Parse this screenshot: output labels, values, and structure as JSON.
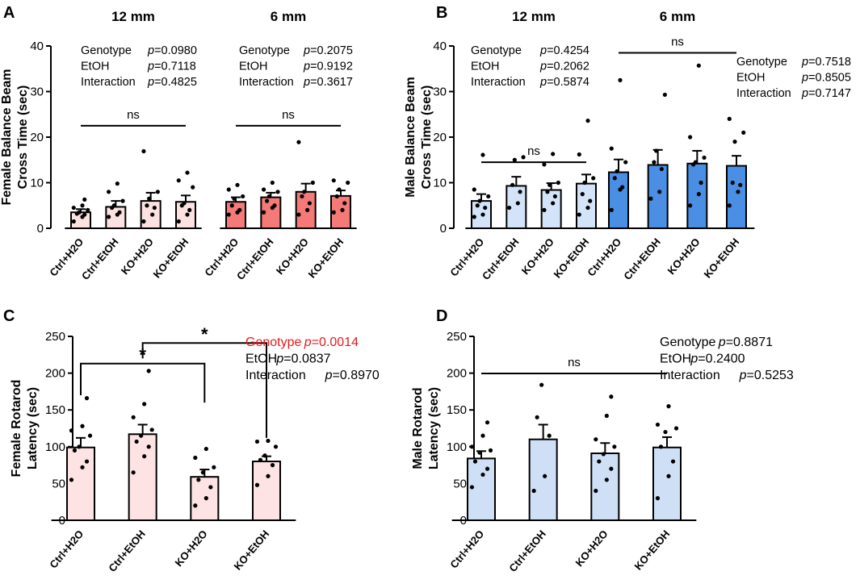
{
  "colors": {
    "female_12": "#fbe1e0",
    "female_6": "#f47a78",
    "male_12": "#d3e4f8",
    "male_6": "#4a8fe4",
    "rotarod_female": "#fde3e3",
    "rotarod_male": "#cfe0f6",
    "highlight": "#e8191a"
  },
  "chart_data": [
    {
      "id": "A",
      "type": "bar",
      "title": "",
      "ylabel": "Female Balance Beam Cross Time (sec)",
      "ylabel_lines": [
        "Female Balance Beam",
        "Cross Time (sec)"
      ],
      "ylim": [
        0,
        40
      ],
      "yticks": [
        "0",
        "10",
        "20",
        "30",
        "40"
      ],
      "groups": [
        {
          "title": "12 mm",
          "color_key": "female_12",
          "categories": [
            "Ctrl+H2O",
            "Ctrl+EtOH",
            "KO+H2O",
            "KO+EtOH"
          ],
          "values": [
            3.5,
            4.7,
            6.0,
            5.8
          ],
          "errors": [
            0.7,
            1.3,
            1.8,
            1.4
          ],
          "points": [
            [
              1.5,
              2.5,
              3.0,
              3.2,
              3.5,
              4.0,
              4.5,
              5.0,
              6.3
            ],
            [
              2.5,
              3.0,
              3.5,
              4.5,
              5.0,
              6.0,
              8.0,
              9.8
            ],
            [
              1.5,
              3.0,
              4.5,
              5.0,
              6.5,
              8.0,
              16.9
            ],
            [
              1.5,
              3.0,
              4.0,
              5.0,
              5.5,
              9.0,
              10.5,
              12.2
            ]
          ],
          "sig": "ns",
          "stats": [
            {
              "label": "Genotype",
              "p": "p",
              "value": "=0.0980"
            },
            {
              "label": "EtOH",
              "p": "p",
              "value": "=0.7118"
            },
            {
              "label": "Interaction",
              "p": "p",
              "value": "=0.4825"
            }
          ]
        },
        {
          "title": "6 mm",
          "color_key": "female_6",
          "categories": [
            "Ctrl+H2O",
            "Ctrl+EtOH",
            "KO+H2O",
            "KO+EtOH"
          ],
          "values": [
            5.8,
            6.8,
            8.0,
            7.1
          ],
          "errors": [
            1.0,
            1.0,
            1.8,
            1.2
          ],
          "points": [
            [
              3.0,
              3.5,
              4.0,
              5.0,
              6.5,
              7.0,
              8.5,
              9.5
            ],
            [
              3.5,
              4.5,
              5.0,
              6.0,
              7.0,
              8.0,
              8.5,
              10.0
            ],
            [
              3.0,
              4.0,
              5.5,
              7.0,
              8.0,
              10.0,
              18.9
            ],
            [
              3.5,
              4.0,
              5.5,
              7.0,
              8.5,
              10.0,
              10.5
            ]
          ],
          "sig": "ns",
          "stats": [
            {
              "label": "Genotype",
              "p": "p",
              "value": "=0.2075"
            },
            {
              "label": "EtOH",
              "p": "p",
              "value": "=0.9192"
            },
            {
              "label": "Interaction",
              "p": "p",
              "value": "=0.3617"
            }
          ]
        }
      ]
    },
    {
      "id": "B",
      "type": "bar",
      "title": "",
      "ylabel": "Male Balance Beam Cross Time (sec)",
      "ylabel_lines": [
        "Male Balance Beam",
        "Cross Time (sec)"
      ],
      "ylim": [
        0,
        40
      ],
      "yticks": [
        "0",
        "10",
        "20",
        "30",
        "40"
      ],
      "groups": [
        {
          "title": "12 mm",
          "color_key": "male_12",
          "categories": [
            "Ctrl+H2O",
            "Ctrl+EtOH",
            "KO+H2O",
            "KO+EtOH"
          ],
          "values": [
            6.0,
            9.3,
            8.4,
            9.8
          ],
          "errors": [
            1.5,
            2.0,
            1.5,
            2.0
          ],
          "points": [
            [
              2.5,
              3.0,
              4.5,
              5.0,
              6.0,
              7.0,
              8.5,
              16.1
            ],
            [
              4.5,
              5.5,
              8.0,
              9.5,
              15.0,
              15.6
            ],
            [
              4.0,
              5.5,
              7.0,
              8.0,
              9.5,
              10.0,
              14.0,
              16.3
            ],
            [
              3.0,
              4.5,
              6.0,
              7.5,
              10.0,
              11.0,
              16.2,
              23.6
            ]
          ],
          "sig": "ns",
          "stats": [
            {
              "label": "Genotype",
              "p": "p",
              "value": "=0.4254"
            },
            {
              "label": "EtOH",
              "p": "p",
              "value": "=0.2062"
            },
            {
              "label": "Interaction",
              "p": "p",
              "value": "=0.5874"
            }
          ]
        },
        {
          "title": "6 mm",
          "color_key": "male_6",
          "categories": [
            "Ctrl+H2O",
            "Ctrl+EtOH",
            "KO+H2O",
            "KO+EtOH"
          ],
          "values": [
            12.3,
            13.9,
            14.2,
            13.7
          ],
          "errors": [
            2.8,
            3.3,
            2.8,
            2.2
          ],
          "points": [
            [
              4.0,
              8.5,
              9.0,
              11.0,
              12.5,
              14.5,
              17.5,
              32.5
            ],
            [
              6.5,
              8.0,
              13.0,
              14.5,
              17.0,
              29.3
            ],
            [
              5.0,
              7.5,
              10.0,
              14.0,
              14.5,
              15.5,
              20.0,
              35.7
            ],
            [
              5.0,
              8.0,
              9.5,
              10.0,
              19.0,
              21.0,
              24.0
            ]
          ],
          "sig": "ns",
          "stats": [
            {
              "label": "Genotype",
              "p": "p",
              "value": "=0.7518"
            },
            {
              "label": "EtOH",
              "p": "p",
              "value": "=0.8505"
            },
            {
              "label": "Interaction",
              "p": "p",
              "value": "=0.7147"
            }
          ]
        }
      ]
    },
    {
      "id": "C",
      "type": "bar",
      "title": "",
      "ylabel": "Female Rotarod Latency (sec)",
      "ylabel_lines": [
        "Female Rotarod",
        "Latency (sec)"
      ],
      "ylim": [
        0,
        250
      ],
      "yticks": [
        "0",
        "50",
        "100",
        "150",
        "200",
        "250"
      ],
      "groups": [
        {
          "title": "",
          "color_key": "rotarod_female",
          "categories": [
            "Ctrl+H2O",
            "Ctrl+EtOH",
            "KO+H2O",
            "KO+EtOH"
          ],
          "values": [
            99,
            117,
            59,
            80
          ],
          "errors": [
            13,
            13,
            10,
            7
          ],
          "points": [
            [
              55,
              72,
              80,
              95,
              100,
              115,
              122,
              128,
              166
            ],
            [
              65,
              87,
              100,
              107,
              115,
              123,
              140,
              158,
              203
            ],
            [
              20,
              30,
              45,
              55,
              65,
              72,
              85,
              97
            ],
            [
              48,
              60,
              75,
              82,
              88,
              100,
              107,
              108
            ]
          ],
          "brackets": [
            {
              "from": 0,
              "to": 2,
              "level": 213,
              "label": "*"
            },
            {
              "from": 1,
              "to": 3,
              "level": 241,
              "label": "*"
            }
          ],
          "stats": [
            {
              "label": "Genotype",
              "p": "p",
              "value": "=0.0014",
              "highlight": true
            },
            {
              "label": "EtOH",
              "p": "p",
              "value": "=0.0837"
            },
            {
              "label": "Interaction",
              "p": "p",
              "value": "=0.8970"
            }
          ]
        }
      ]
    },
    {
      "id": "D",
      "type": "bar",
      "title": "",
      "ylabel": "Male Rotarod Latency (sec)",
      "ylabel_lines": [
        "Male Rotarod",
        "Latency (sec)"
      ],
      "ylim": [
        0,
        250
      ],
      "yticks": [
        "0",
        "50",
        "100",
        "150",
        "200",
        "250"
      ],
      "groups": [
        {
          "title": "",
          "color_key": "rotarod_male",
          "categories": [
            "Ctrl+H2O",
            "Ctrl+EtOH",
            "KO+H2O",
            "KO+EtOH"
          ],
          "values": [
            84,
            110,
            91,
            99
          ],
          "errors": [
            10,
            20,
            14,
            14
          ],
          "points": [
            [
              45,
              62,
              70,
              80,
              92,
              95,
              100,
              115,
              133
            ],
            [
              40,
              60,
              115,
              140,
              184
            ],
            [
              40,
              55,
              70,
              80,
              90,
              100,
              110,
              142,
              168
            ],
            [
              30,
              60,
              80,
              100,
              120,
              125,
              130,
              155
            ]
          ],
          "sig": "ns",
          "stats": [
            {
              "label": "Genotype",
              "p": "p",
              "value": "=0.8871"
            },
            {
              "label": "EtOH",
              "p": "p",
              "value": "=0.2400"
            },
            {
              "label": "Interaction",
              "p": "p",
              "value": "=0.5253"
            }
          ]
        }
      ]
    }
  ]
}
